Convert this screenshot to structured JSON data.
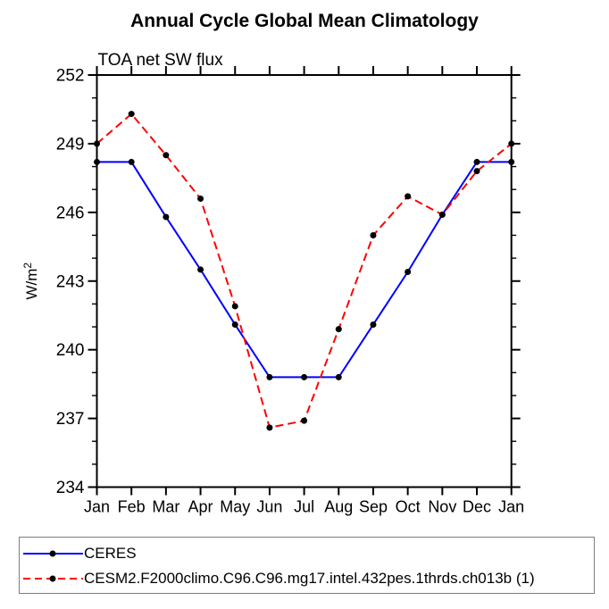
{
  "title": "Annual Cycle Global Mean Climatology",
  "subtitle": "TOA net SW flux",
  "chart_data": {
    "type": "line",
    "categories": [
      "Jan",
      "Feb",
      "Mar",
      "Apr",
      "May",
      "Jun",
      "Jul",
      "Aug",
      "Sep",
      "Oct",
      "Nov",
      "Dec",
      "Jan"
    ],
    "series": [
      {
        "name": "CERES",
        "color": "#0000ff",
        "line_style": "solid",
        "marker": "black-dot",
        "values": [
          248.2,
          248.2,
          245.8,
          243.5,
          241.1,
          238.8,
          238.8,
          238.8,
          241.1,
          243.4,
          245.9,
          248.2,
          248.2
        ]
      },
      {
        "name": "CESM2.F2000climo.C96.C96.mg17.intel.432pes.1thrds.ch013b (1)",
        "color": "#ff0000",
        "line_style": "dashed",
        "marker": "black-dot",
        "values": [
          249.0,
          250.3,
          248.5,
          246.6,
          241.9,
          236.6,
          236.9,
          240.9,
          245.0,
          246.7,
          245.9,
          247.8,
          249.0
        ]
      }
    ],
    "ylabel_base": "W/m",
    "ylabel_sup": "2",
    "ylabel": "W/m²",
    "ylim": [
      234,
      252
    ],
    "ytick_major_step": 3,
    "ytick_minor_step": 1,
    "ytick_labels": [
      "234",
      "237",
      "240",
      "243",
      "246",
      "249",
      "252"
    ],
    "grid": false,
    "legend_position": "bottom-left-box",
    "axis_color": "#000000",
    "marker_color": "#000000"
  }
}
